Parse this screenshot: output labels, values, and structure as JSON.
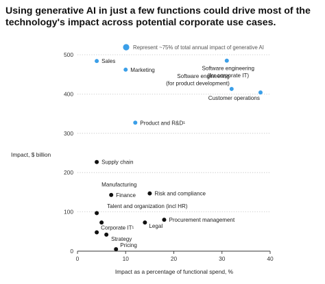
{
  "title": "Using generative AI in just a few functions could drive most of the technology's impact across potential corporate use cases.",
  "chart_data": {
    "type": "scatter",
    "title": "Using generative AI in just a few functions could drive most of the technology's impact across potential corporate use cases.",
    "xlabel": "Impact as a percentage of functional spend, %",
    "ylabel": "Impact, $ billion",
    "xlim": [
      0,
      40
    ],
    "ylim": [
      0,
      500
    ],
    "xticks": [
      "0",
      "10",
      "20",
      "30",
      "40"
    ],
    "yticks": [
      "0",
      "100",
      "200",
      "300",
      "400",
      "500"
    ],
    "grid": "horizontal dotted",
    "legend": {
      "label": "Represent ~75% of total annual impact of generative AI",
      "color": "#3b9fe8",
      "placement": "top"
    },
    "colors": {
      "highlight": "#3b9fe8",
      "other": "#111111"
    },
    "points": [
      {
        "label": "Sales",
        "x": 4,
        "y": 484,
        "highlight": true
      },
      {
        "label": "Marketing",
        "x": 10,
        "y": 462,
        "highlight": true
      },
      {
        "label": "Software engineering\n(for corporate IT)",
        "x": 31,
        "y": 485,
        "highlight": true
      },
      {
        "label": "Software engineering\n(for product development)",
        "x": 32,
        "y": 413,
        "highlight": true
      },
      {
        "label": "Customer operations",
        "x": 38,
        "y": 404,
        "highlight": true
      },
      {
        "label": "Product and R&D¹",
        "x": 12,
        "y": 327,
        "highlight": true
      },
      {
        "label": "Supply chain",
        "x": 4,
        "y": 227,
        "highlight": false
      },
      {
        "label": "Risk and compliance",
        "x": 15,
        "y": 147,
        "highlight": false
      },
      {
        "label": "Finance",
        "x": 7,
        "y": 143,
        "highlight": false
      },
      {
        "label": "Manufacturing",
        "x": 4,
        "y": 97,
        "highlight": false
      },
      {
        "label": "Procurement management",
        "x": 18,
        "y": 80,
        "highlight": false
      },
      {
        "label": "Talent and organization (incl HR)",
        "x": 5,
        "y": 73,
        "highlight": false
      },
      {
        "label": "Legal",
        "x": 14,
        "y": 73,
        "highlight": false
      },
      {
        "label": "Corporate IT¹",
        "x": 4,
        "y": 48,
        "highlight": false
      },
      {
        "label": "Strategy",
        "x": 6,
        "y": 42,
        "highlight": false
      },
      {
        "label": "Pricing",
        "x": 8,
        "y": 5,
        "highlight": false
      }
    ]
  }
}
